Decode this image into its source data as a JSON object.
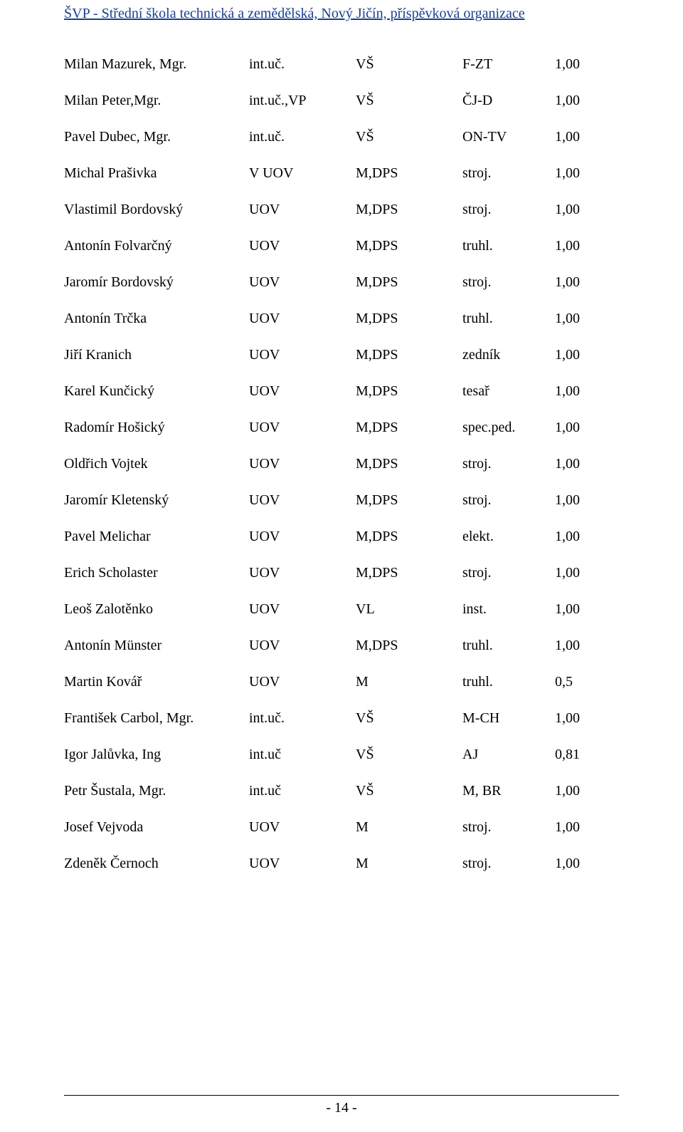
{
  "header": {
    "title": "ŠVP - Střední škola technická a zemědělská, Nový Jičín, příspěvková organizace",
    "color": "#1b3f8f"
  },
  "footer": {
    "page_label": "- 14 -"
  },
  "rows": [
    {
      "name": "Milan Mazurek, Mgr.",
      "func": "int.uč.",
      "qual": "VŠ",
      "subj": "F-ZT",
      "coef": "1,00"
    },
    {
      "name": "Milan Peter,Mgr.",
      "func": "int.uč.,VP",
      "qual": "VŠ",
      "subj": "ČJ-D",
      "coef": "1,00"
    },
    {
      "name": "Pavel Dubec, Mgr.",
      "func": "int.uč.",
      "qual": "VŠ",
      "subj": "ON-TV",
      "coef": "1,00"
    },
    {
      "name": "Michal Prašivka",
      "func": "V UOV",
      "qual": "M,DPS",
      "subj": "stroj.",
      "coef": "1,00"
    },
    {
      "name": "Vlastimil Bordovský",
      "func": "UOV",
      "qual": "M,DPS",
      "subj": "stroj.",
      "coef": "1,00"
    },
    {
      "name": "Antonín Folvarčný",
      "func": "UOV",
      "qual": "M,DPS",
      "subj": "truhl.",
      "coef": "1,00"
    },
    {
      "name": "Jaromír Bordovský",
      "func": "UOV",
      "qual": "M,DPS",
      "subj": "stroj.",
      "coef": "1,00"
    },
    {
      "name": "Antonín Trčka",
      "func": "UOV",
      "qual": "M,DPS",
      "subj": "truhl.",
      "coef": "1,00"
    },
    {
      "name": "Jiří Kranich",
      "func": "UOV",
      "qual": "M,DPS",
      "subj": "zedník",
      "coef": "1,00"
    },
    {
      "name": "Karel Kunčický",
      "func": "UOV",
      "qual": "M,DPS",
      "subj": "tesař",
      "coef": "1,00"
    },
    {
      "name": "Radomír Hošický",
      "func": "UOV",
      "qual": "M,DPS",
      "subj": "spec.ped.",
      "coef": "1,00"
    },
    {
      "name": "Oldřich Vojtek",
      "func": "UOV",
      "qual": "M,DPS",
      "subj": "stroj.",
      "coef": "1,00"
    },
    {
      "name": "Jaromír Kletenský",
      "func": "UOV",
      "qual": "M,DPS",
      "subj": "stroj.",
      "coef": "1,00"
    },
    {
      "name": "Pavel Melichar",
      "func": "UOV",
      "qual": "M,DPS",
      "subj": "elekt.",
      "coef": "1,00"
    },
    {
      "name": "Erich Scholaster",
      "func": "UOV",
      "qual": "M,DPS",
      "subj": "stroj.",
      "coef": "1,00"
    },
    {
      "name": "Leoš Zalotěnko",
      "func": "UOV",
      "qual": "VL",
      "subj": "inst.",
      "coef": "1,00"
    },
    {
      "name": "Antonín Münster",
      "func": "UOV",
      "qual": "M,DPS",
      "subj": "truhl.",
      "coef": "1,00"
    },
    {
      "name": "Martin Kovář",
      "func": "UOV",
      "qual": "M",
      "subj": "truhl.",
      "coef": "0,5"
    },
    {
      "name": "František Carbol, Mgr.",
      "func": "int.uč.",
      "qual": "VŠ",
      "subj": "M-CH",
      "coef": "1,00"
    },
    {
      "name": "Igor Jalůvka, Ing",
      "func": "int.uč",
      "qual": "VŠ",
      "subj": "AJ",
      "coef": "0,81"
    },
    {
      "name": "Petr Šustala, Mgr.",
      "func": "int.uč",
      "qual": "VŠ",
      "subj": "M, BR",
      "coef": "1,00"
    },
    {
      "name": "Josef Vejvoda",
      "func": "UOV",
      "qual": "M",
      "subj": "stroj.",
      "coef": "1,00"
    },
    {
      "name": "Zdeněk Černoch",
      "func": "UOV",
      "qual": "M",
      "subj": "stroj.",
      "coef": "1,00"
    }
  ]
}
